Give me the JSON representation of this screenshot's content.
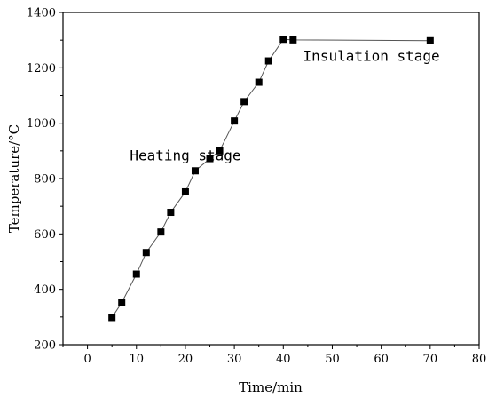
{
  "chart_data": {
    "type": "line",
    "title": "",
    "xlabel": "Time/min",
    "ylabel": "Temperature/°C",
    "xlim": [
      -5,
      80
    ],
    "ylim": [
      200,
      1400
    ],
    "x_ticks": [
      0,
      10,
      20,
      30,
      40,
      50,
      60,
      70,
      80
    ],
    "y_ticks": [
      200,
      400,
      600,
      800,
      1000,
      1200,
      1400
    ],
    "grid": false,
    "legend": "none",
    "series": [
      {
        "marker": "square",
        "color": "#000000",
        "line_color": "#555555",
        "x": [
          5,
          7,
          10,
          12,
          15,
          17,
          20,
          22,
          25,
          27,
          30,
          32,
          35,
          37,
          40,
          42,
          70
        ],
        "y": [
          298,
          352,
          455,
          533,
          607,
          678,
          752,
          828,
          872,
          900,
          1008,
          1078,
          1148,
          1225,
          1303,
          1301,
          1298
        ]
      }
    ],
    "annotations": [
      {
        "text": "Heating stage",
        "x": 20,
        "y": 865
      },
      {
        "text": "Insulation stage",
        "x": 58,
        "y": 1225
      }
    ]
  }
}
